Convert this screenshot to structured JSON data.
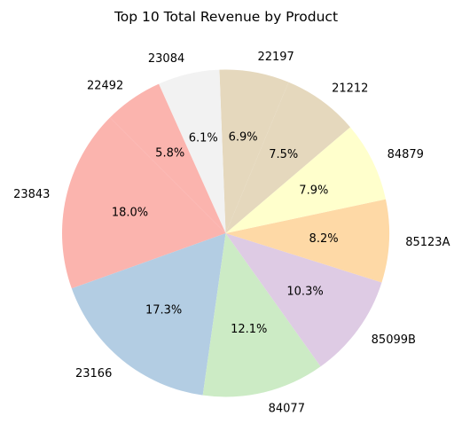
{
  "chart_data": {
    "type": "pie",
    "title": "Top 10 Total Revenue by Product",
    "start_angle_deg": 135,
    "direction": "counterclockwise",
    "slices": [
      {
        "label": "23843",
        "percent": 18.0,
        "percent_label": "18.0%",
        "color": "#fbb4ae"
      },
      {
        "label": "23166",
        "percent": 17.3,
        "percent_label": "17.3%",
        "color": "#b3cde3"
      },
      {
        "label": "84077",
        "percent": 12.1,
        "percent_label": "12.1%",
        "color": "#ccebc5"
      },
      {
        "label": "85099B",
        "percent": 10.3,
        "percent_label": "10.3%",
        "color": "#decbe4"
      },
      {
        "label": "85123A",
        "percent": 8.2,
        "percent_label": "8.2%",
        "color": "#fed9a6"
      },
      {
        "label": "84879",
        "percent": 7.9,
        "percent_label": "7.9%",
        "color": "#ffffcc"
      },
      {
        "label": "21212",
        "percent": 7.5,
        "percent_label": "7.5%",
        "color": "#e5d8bd"
      },
      {
        "label": "22197",
        "percent": 6.9,
        "percent_label": "6.9%",
        "color": "#e5d8bd"
      },
      {
        "label": "23084",
        "percent": 6.1,
        "percent_label": "6.1%",
        "color": "#f2f2f2"
      },
      {
        "label": "22492",
        "percent": 5.8,
        "percent_label": "5.8%",
        "color": "#fbb4ae"
      }
    ]
  }
}
